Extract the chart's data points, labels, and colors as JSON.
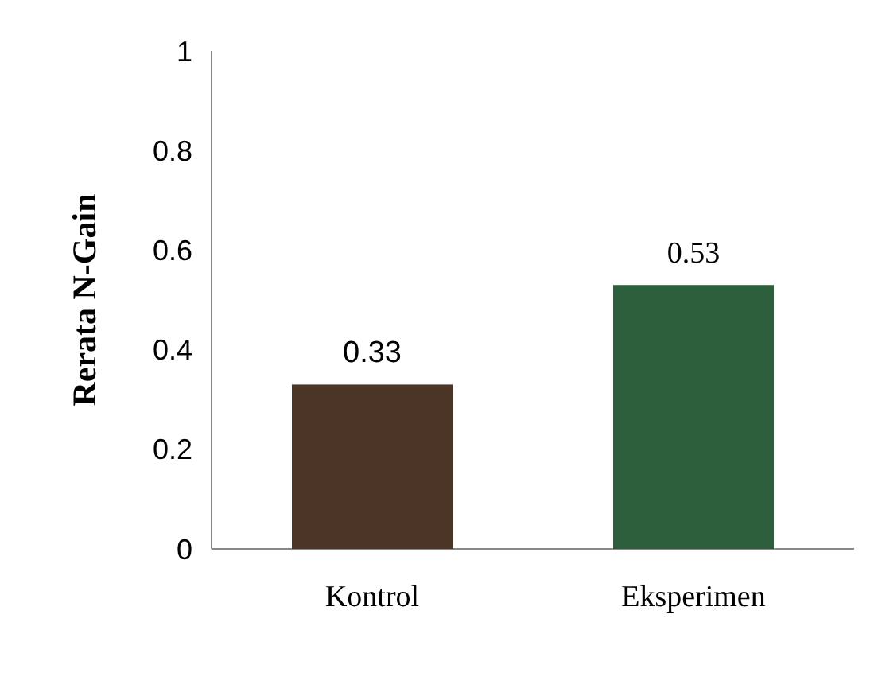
{
  "chart_data": {
    "type": "bar",
    "ylabel": "Rerata N-Gain",
    "categories": [
      "Kontrol",
      "Eksperimen"
    ],
    "values": [
      0.33,
      0.53
    ],
    "colors": [
      "#4b3526",
      "#2d5f3c"
    ],
    "ylim": [
      0,
      1
    ],
    "yticks": [
      0,
      0.2,
      0.4,
      0.6,
      0.8,
      1
    ],
    "data_labels": true,
    "grid": false
  }
}
